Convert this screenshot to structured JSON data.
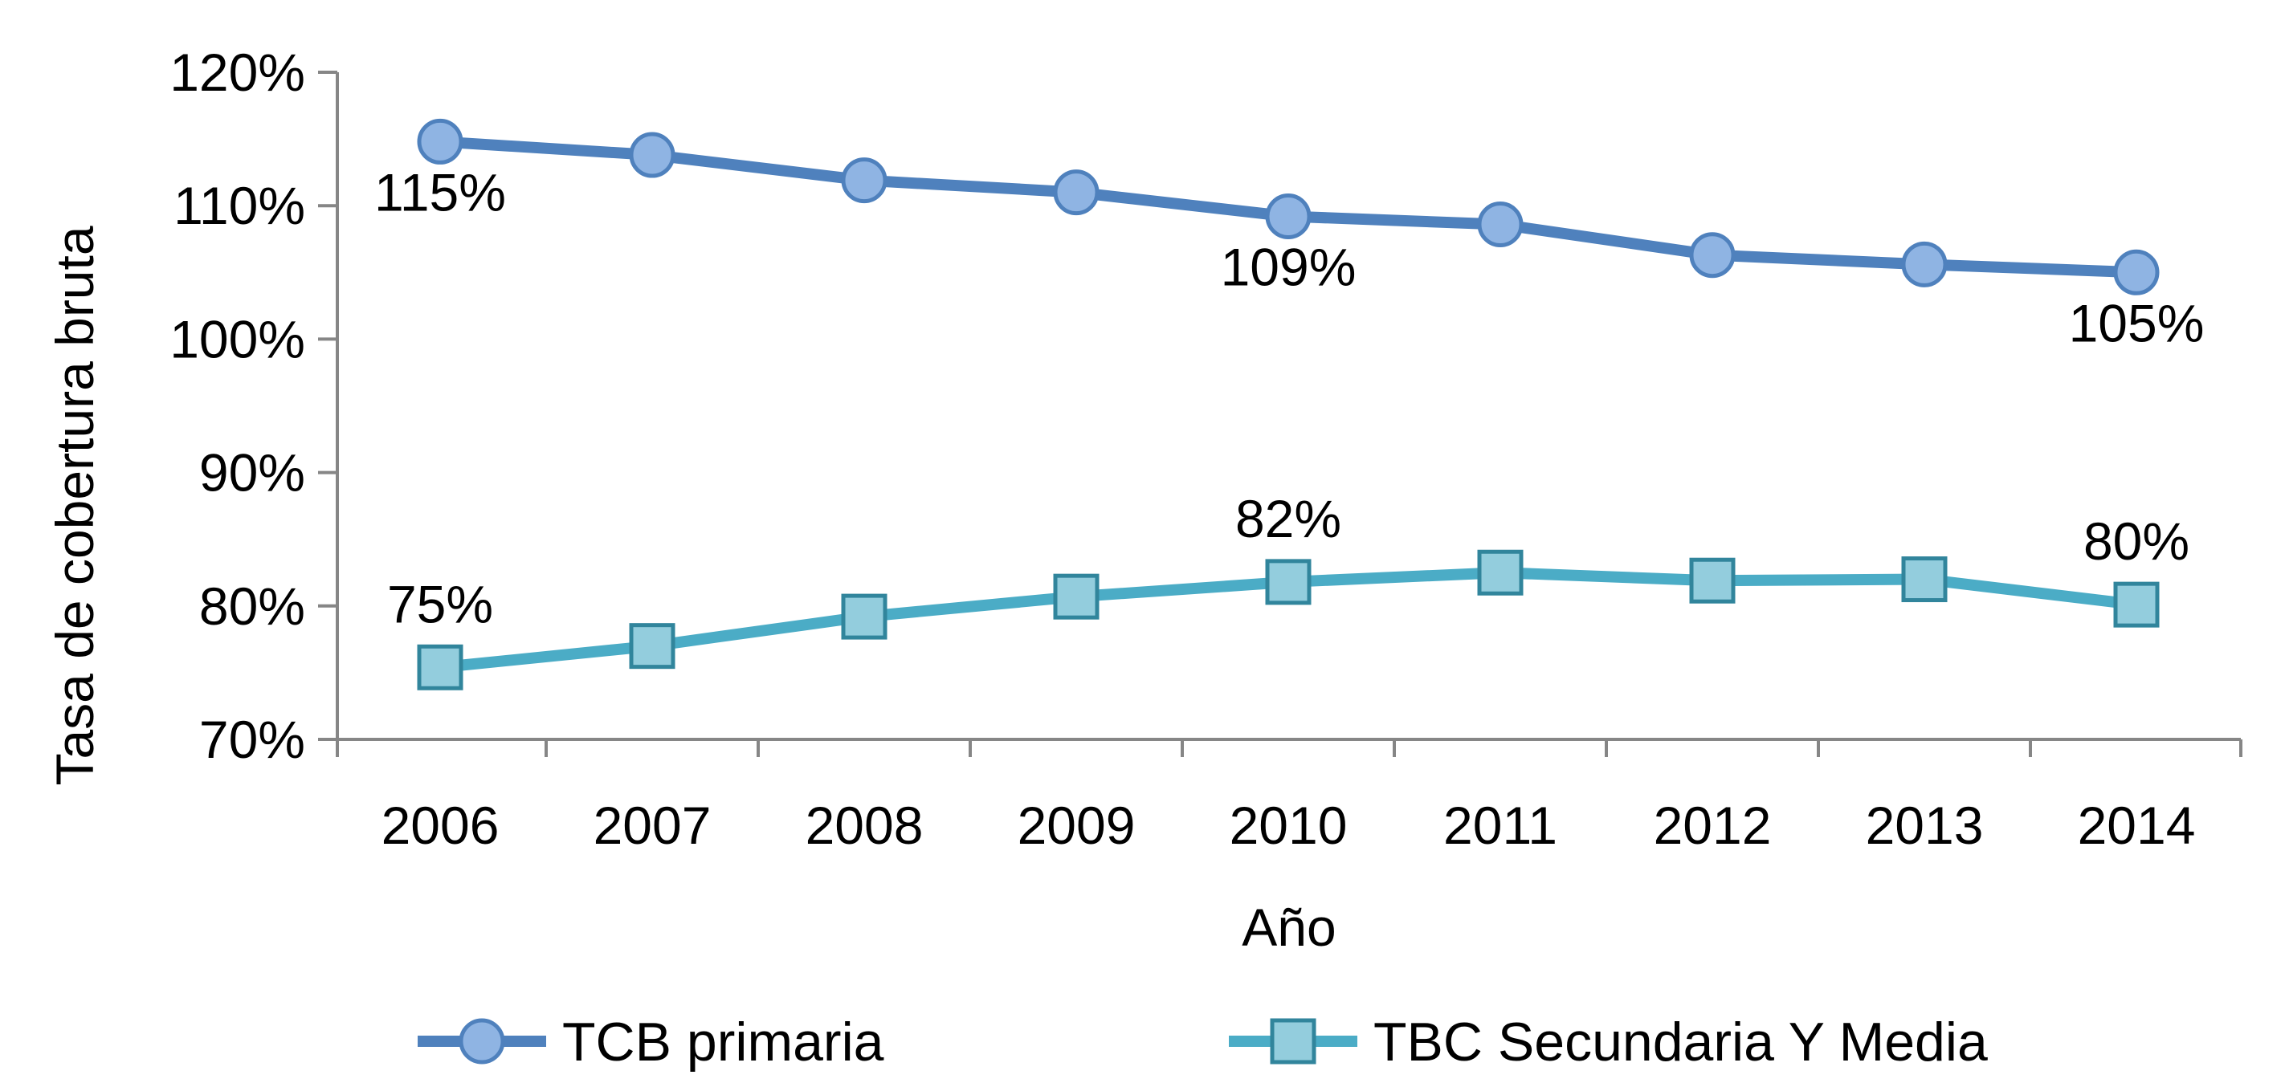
{
  "chart_data": {
    "type": "line",
    "title": "",
    "xlabel": "Año",
    "ylabel": "Tasa de cobertura bruta",
    "categories": [
      "2006",
      "2007",
      "2008",
      "2009",
      "2010",
      "2011",
      "2012",
      "2013",
      "2014"
    ],
    "yticks": [
      "70%",
      "80%",
      "90%",
      "100%",
      "110%",
      "120%"
    ],
    "ylim": [
      70,
      120
    ],
    "grid": false,
    "legend_position": "bottom",
    "series": [
      {
        "name": "TCB primaria",
        "marker": "circle",
        "line_color": "#4F81BD",
        "marker_fill": "#8FB4E3",
        "marker_stroke": "#4F81BD",
        "values": [
          114.8,
          113.8,
          111.9,
          111.0,
          109.2,
          108.6,
          106.3,
          105.6,
          105.0
        ],
        "labels": [
          {
            "index": 0,
            "text": "115%",
            "position": "below"
          },
          {
            "index": 4,
            "text": "109%",
            "position": "below"
          },
          {
            "index": 8,
            "text": "105%",
            "position": "below"
          }
        ]
      },
      {
        "name": "TBC Secundaria Y Media",
        "marker": "square",
        "line_color": "#4BACC6",
        "marker_fill": "#93CDDD",
        "marker_stroke": "#31859C",
        "values": [
          75.4,
          77.0,
          79.2,
          80.7,
          81.8,
          82.5,
          81.9,
          82.0,
          80.1
        ],
        "labels": [
          {
            "index": 0,
            "text": "75%",
            "position": "above"
          },
          {
            "index": 4,
            "text": "82%",
            "position": "above"
          },
          {
            "index": 8,
            "text": "80%",
            "position": "above"
          }
        ]
      }
    ]
  }
}
